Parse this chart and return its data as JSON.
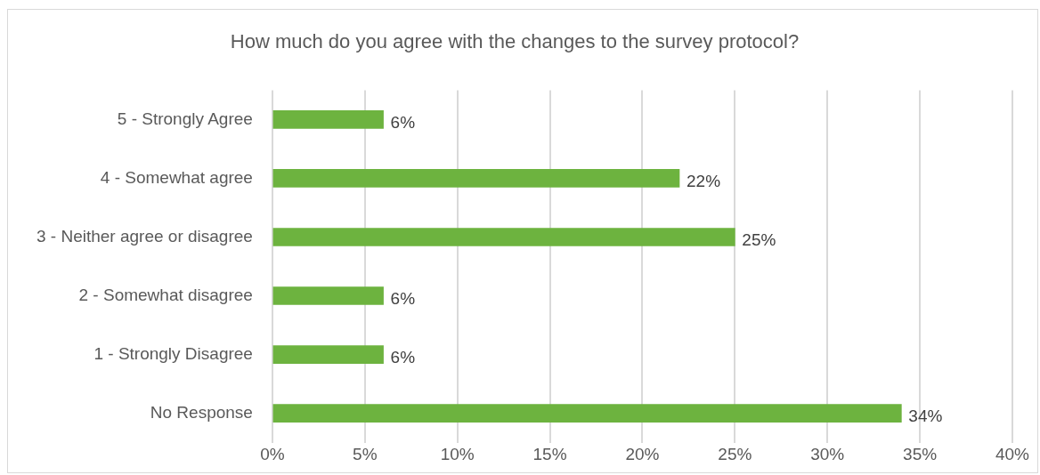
{
  "chart_data": {
    "type": "bar",
    "orientation": "horizontal",
    "title": "How much do you agree with the changes to the survey protocol?",
    "categories": [
      "5 - Strongly Agree",
      "4 - Somewhat agree",
      "3 - Neither agree or disagree",
      "2 - Somewhat disagree",
      "1 - Strongly Disagree",
      "No Response"
    ],
    "values": [
      6,
      22,
      25,
      6,
      6,
      34
    ],
    "value_labels": [
      "6%",
      "22%",
      "25%",
      "6%",
      "6%",
      "34%"
    ],
    "color": "#6db33f",
    "xlim": [
      0,
      40
    ],
    "xticks": [
      {
        "value": 0,
        "label": "0%"
      },
      {
        "value": 5,
        "label": "5%"
      },
      {
        "value": 10,
        "label": "10%"
      },
      {
        "value": 15,
        "label": "15%"
      },
      {
        "value": 20,
        "label": "20%"
      },
      {
        "value": 25,
        "label": "25%"
      },
      {
        "value": 30,
        "label": "30%"
      },
      {
        "value": 35,
        "label": "35%"
      },
      {
        "value": 40,
        "label": "40%"
      }
    ],
    "grid": "x"
  }
}
